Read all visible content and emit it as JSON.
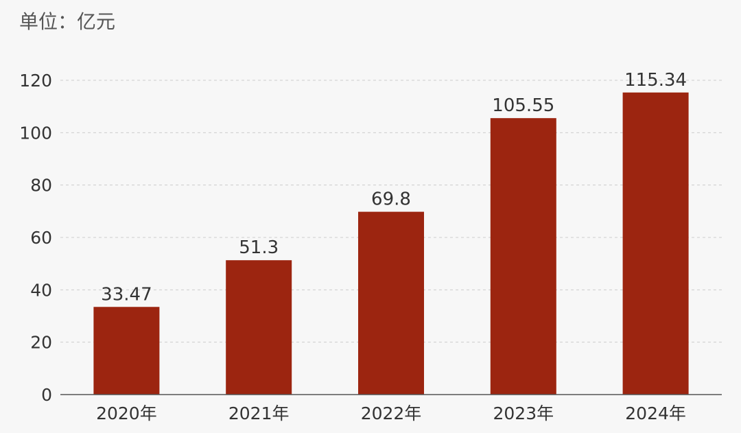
{
  "unit_label": "单位：亿元",
  "colors": {
    "bar": "#9c2510",
    "grid": "#cccccc",
    "axis": "#555555",
    "text": "#333333",
    "background": "#f7f7f7"
  },
  "chart_data": {
    "type": "bar",
    "title": "",
    "xlabel": "",
    "ylabel": "",
    "categories": [
      "2020年",
      "2021年",
      "2022年",
      "2023年",
      "2024年"
    ],
    "values": [
      33.47,
      51.3,
      69.8,
      105.55,
      115.34
    ],
    "value_labels": [
      "33.47",
      "51.3",
      "69.8",
      "105.55",
      "115.34"
    ],
    "ylim": [
      0,
      120
    ],
    "yticks": [
      0,
      20,
      40,
      60,
      80,
      100,
      120
    ],
    "grid": true,
    "grid_style": "dashed"
  }
}
